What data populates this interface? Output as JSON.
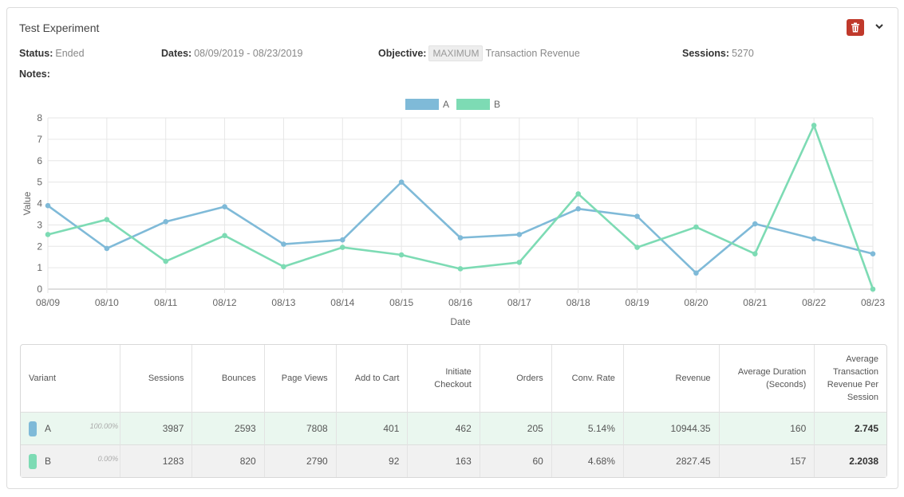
{
  "experiment": {
    "title": "Test Experiment",
    "status_label": "Status:",
    "status_value": "Ended",
    "dates_label": "Dates:",
    "dates_value": "08/09/2019 - 08/23/2019",
    "objective_label": "Objective:",
    "objective_tag": "MAXIMUM",
    "objective_value": "Transaction Revenue",
    "sessions_label": "Sessions:",
    "sessions_value": "5270",
    "notes_label": "Notes:"
  },
  "icons": {
    "delete": "trash-icon",
    "expand": "chevron-down-icon"
  },
  "chart_data": {
    "type": "line",
    "categories": [
      "08/09",
      "08/10",
      "08/11",
      "08/12",
      "08/13",
      "08/14",
      "08/15",
      "08/16",
      "08/17",
      "08/18",
      "08/19",
      "08/20",
      "08/21",
      "08/22",
      "08/23"
    ],
    "series": [
      {
        "name": "A",
        "color": "#7fbad8",
        "values": [
          3.9,
          1.9,
          3.15,
          3.85,
          2.1,
          2.3,
          5.0,
          2.4,
          2.55,
          3.75,
          3.4,
          0.75,
          3.05,
          2.35,
          1.65
        ]
      },
      {
        "name": "B",
        "color": "#7ddbb4",
        "values": [
          2.55,
          3.25,
          1.3,
          2.5,
          1.05,
          1.95,
          1.6,
          0.95,
          1.25,
          4.45,
          1.95,
          2.9,
          1.65,
          7.65,
          0.0
        ]
      }
    ],
    "xlabel": "Date",
    "ylabel": "Value",
    "ylim": [
      0,
      8
    ],
    "yticks": [
      "0",
      "1",
      "2",
      "3",
      "4",
      "5",
      "6",
      "7",
      "8"
    ],
    "grid": true,
    "legend_position": "top-center"
  },
  "table": {
    "headers": {
      "variant": "Variant",
      "sessions": "Sessions",
      "bounces": "Bounces",
      "page_views": "Page Views",
      "add_to_cart": "Add to Cart",
      "initiate_checkout_1": "Initiate",
      "initiate_checkout_2": "Checkout",
      "orders": "Orders",
      "conv_rate": "Conv. Rate",
      "revenue": "Revenue",
      "avg_duration_1": "Average Duration",
      "avg_duration_2": "(Seconds)",
      "atrps_1": "Average",
      "atrps_2": "Transaction",
      "atrps_3": "Revenue Per",
      "atrps_4": "Session"
    },
    "rows": [
      {
        "variant": "A",
        "color": "#7fbad8",
        "pct": "100.00%",
        "sessions": "3987",
        "bounces": "2593",
        "page_views": "7808",
        "add_to_cart": "401",
        "initiate_checkout": "462",
        "orders": "205",
        "conv_rate": "5.14%",
        "revenue": "10944.35",
        "avg_duration": "160",
        "atrps": "2.745"
      },
      {
        "variant": "B",
        "color": "#7ddbb4",
        "pct": "0.00%",
        "sessions": "1283",
        "bounces": "820",
        "page_views": "2790",
        "add_to_cart": "92",
        "initiate_checkout": "163",
        "orders": "60",
        "conv_rate": "4.68%",
        "revenue": "2827.45",
        "avg_duration": "157",
        "atrps": "2.2038"
      }
    ]
  }
}
